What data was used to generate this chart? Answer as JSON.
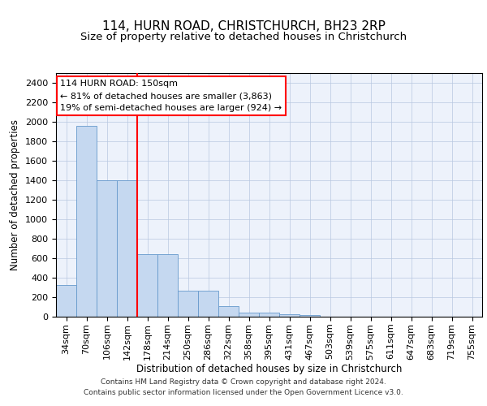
{
  "title": "114, HURN ROAD, CHRISTCHURCH, BH23 2RP",
  "subtitle": "Size of property relative to detached houses in Christchurch",
  "xlabel": "Distribution of detached houses by size in Christchurch",
  "ylabel": "Number of detached properties",
  "bar_color": "#c5d8f0",
  "bar_edge_color": "#6699cc",
  "bar_values": [
    325,
    1960,
    1400,
    1400,
    640,
    640,
    270,
    270,
    105,
    45,
    40,
    25,
    20,
    0,
    0,
    0,
    0,
    0,
    0,
    0,
    0
  ],
  "categories": [
    "34sqm",
    "70sqm",
    "106sqm",
    "142sqm",
    "178sqm",
    "214sqm",
    "250sqm",
    "286sqm",
    "322sqm",
    "358sqm",
    "395sqm",
    "431sqm",
    "467sqm",
    "503sqm",
    "539sqm",
    "575sqm",
    "611sqm",
    "647sqm",
    "683sqm",
    "719sqm",
    "755sqm"
  ],
  "red_line_x": 3.5,
  "annotation_text_line1": "114 HURN ROAD: 150sqm",
  "annotation_text_line2": "← 81% of detached houses are smaller (3,863)",
  "annotation_text_line3": "19% of semi-detached houses are larger (924) →",
  "ylim": [
    0,
    2500
  ],
  "yticks": [
    0,
    200,
    400,
    600,
    800,
    1000,
    1200,
    1400,
    1600,
    1800,
    2000,
    2200,
    2400
  ],
  "footer_line1": "Contains HM Land Registry data © Crown copyright and database right 2024.",
  "footer_line2": "Contains public sector information licensed under the Open Government Licence v3.0.",
  "background_color": "#edf2fb",
  "grid_color": "#b8c8e0",
  "title_fontsize": 11,
  "axis_label_fontsize": 8.5,
  "tick_fontsize": 8,
  "annotation_fontsize": 8,
  "footer_fontsize": 6.5
}
